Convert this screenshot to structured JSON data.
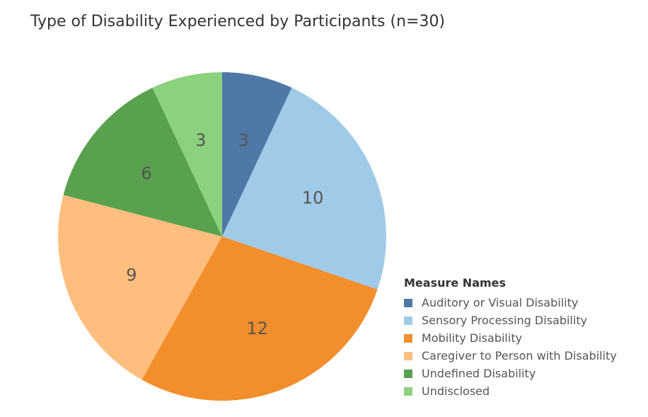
{
  "chart_data": {
    "type": "pie",
    "title": "Type of Disability Experienced by Participants (n=30)",
    "legend_title": "Measure Names",
    "legend_position": "bottom-right",
    "slices": [
      {
        "label": "Auditory or Visual Disability",
        "value": 3,
        "color": "#4e79a7"
      },
      {
        "label": "Sensory Processing Disability",
        "value": 10,
        "color": "#a0cbe8"
      },
      {
        "label": "Mobility Disability",
        "value": 12,
        "color": "#f28e2b"
      },
      {
        "label": "Caregiver to Person with Disability",
        "value": 9,
        "color": "#ffbe7d"
      },
      {
        "label": "Undefined Disability",
        "value": 6,
        "color": "#59a14f"
      },
      {
        "label": "Undisclosed",
        "value": 3,
        "color": "#8cd17d"
      }
    ]
  }
}
